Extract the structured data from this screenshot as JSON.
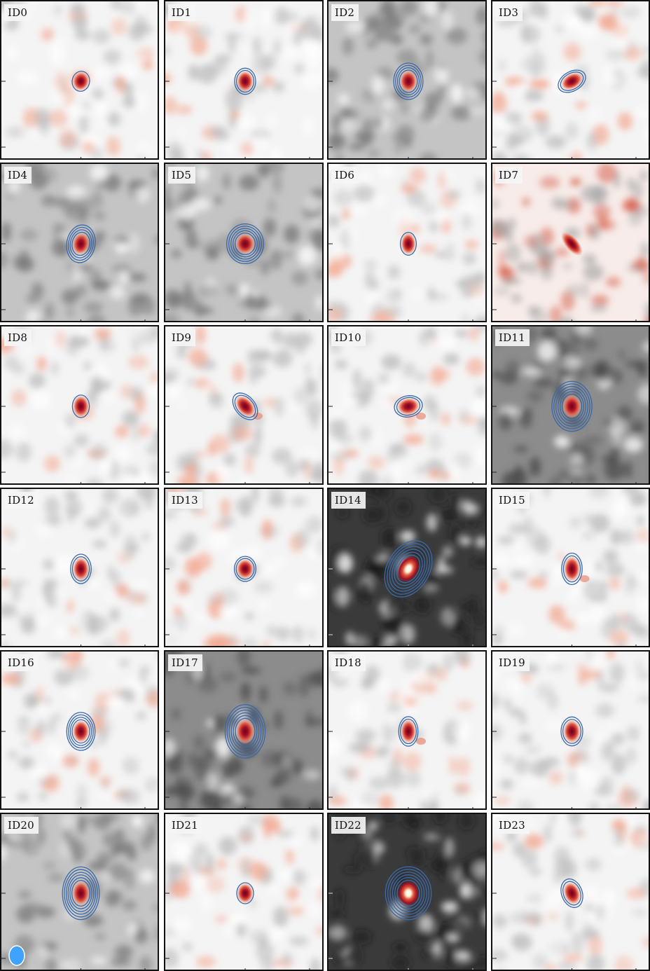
{
  "figure": {
    "beam_color": "#3fa2ff",
    "contour_color": "#3b69a9",
    "panels": [
      {
        "id": "ID0",
        "bg": "light",
        "intensity": 0.55,
        "elong": 0.1,
        "pa": 10,
        "levels": 1,
        "spur": false
      },
      {
        "id": "ID1",
        "bg": "light",
        "intensity": 0.6,
        "elong": 0.15,
        "pa": 0,
        "levels": 2,
        "spur": false
      },
      {
        "id": "ID2",
        "bg": "mid",
        "intensity": 0.65,
        "elong": 0.15,
        "pa": 0,
        "levels": 4,
        "spur": false
      },
      {
        "id": "ID3",
        "bg": "light",
        "intensity": 0.6,
        "elong": 0.3,
        "pa": 60,
        "levels": 2,
        "spur": false
      },
      {
        "id": "ID4",
        "bg": "mid",
        "intensity": 0.65,
        "elong": 0.2,
        "pa": 10,
        "levels": 4,
        "spur": false
      },
      {
        "id": "ID5",
        "bg": "mid",
        "intensity": 0.75,
        "elong": 0.05,
        "pa": 0,
        "levels": 5,
        "spur": false
      },
      {
        "id": "ID6",
        "bg": "light",
        "intensity": 0.55,
        "elong": 0.25,
        "pa": 0,
        "levels": 1,
        "spur": false
      },
      {
        "id": "ID7",
        "bg": "red",
        "intensity": 0.65,
        "elong": 0.55,
        "pa": -40,
        "levels": 0,
        "spur": false
      },
      {
        "id": "ID8",
        "bg": "light",
        "intensity": 0.6,
        "elong": 0.2,
        "pa": 0,
        "levels": 1,
        "spur": false
      },
      {
        "id": "ID9",
        "bg": "light",
        "intensity": 0.65,
        "elong": 0.3,
        "pa": -40,
        "levels": 2,
        "spur": true
      },
      {
        "id": "ID10",
        "bg": "light",
        "intensity": 0.65,
        "elong": 0.2,
        "pa": 80,
        "levels": 2,
        "spur": true
      },
      {
        "id": "ID11",
        "bg": "dark",
        "intensity": 0.8,
        "elong": 0.15,
        "pa": 0,
        "levels": 6,
        "spur": false
      },
      {
        "id": "ID12",
        "bg": "light",
        "intensity": 0.65,
        "elong": 0.25,
        "pa": 0,
        "levels": 2,
        "spur": false
      },
      {
        "id": "ID13",
        "bg": "light",
        "intensity": 0.6,
        "elong": 0.1,
        "pa": 0,
        "levels": 2,
        "spur": false
      },
      {
        "id": "ID14",
        "bg": "black",
        "intensity": 1.0,
        "elong": 0.25,
        "pa": 30,
        "levels": 6,
        "spur": false
      },
      {
        "id": "ID15",
        "bg": "light",
        "intensity": 0.7,
        "elong": 0.3,
        "pa": 0,
        "levels": 2,
        "spur": true
      },
      {
        "id": "ID16",
        "bg": "light",
        "intensity": 0.65,
        "elong": 0.2,
        "pa": 0,
        "levels": 4,
        "spur": false
      },
      {
        "id": "ID17",
        "bg": "dark",
        "intensity": 0.85,
        "elong": 0.2,
        "pa": 0,
        "levels": 6,
        "spur": false
      },
      {
        "id": "ID18",
        "bg": "light",
        "intensity": 0.6,
        "elong": 0.3,
        "pa": 0,
        "levels": 2,
        "spur": true
      },
      {
        "id": "ID19",
        "bg": "light",
        "intensity": 0.7,
        "elong": 0.2,
        "pa": 0,
        "levels": 2,
        "spur": false
      },
      {
        "id": "ID20",
        "bg": "mid",
        "intensity": 0.75,
        "elong": 0.25,
        "pa": 0,
        "levels": 6,
        "spur": false
      },
      {
        "id": "ID21",
        "bg": "light",
        "intensity": 0.55,
        "elong": 0.15,
        "pa": 0,
        "levels": 1,
        "spur": false
      },
      {
        "id": "ID22",
        "bg": "black",
        "intensity": 1.0,
        "elong": 0.1,
        "pa": 0,
        "levels": 6,
        "spur": false
      },
      {
        "id": "ID23",
        "bg": "light",
        "intensity": 0.65,
        "elong": 0.25,
        "pa": -20,
        "levels": 2,
        "spur": false
      }
    ]
  }
}
